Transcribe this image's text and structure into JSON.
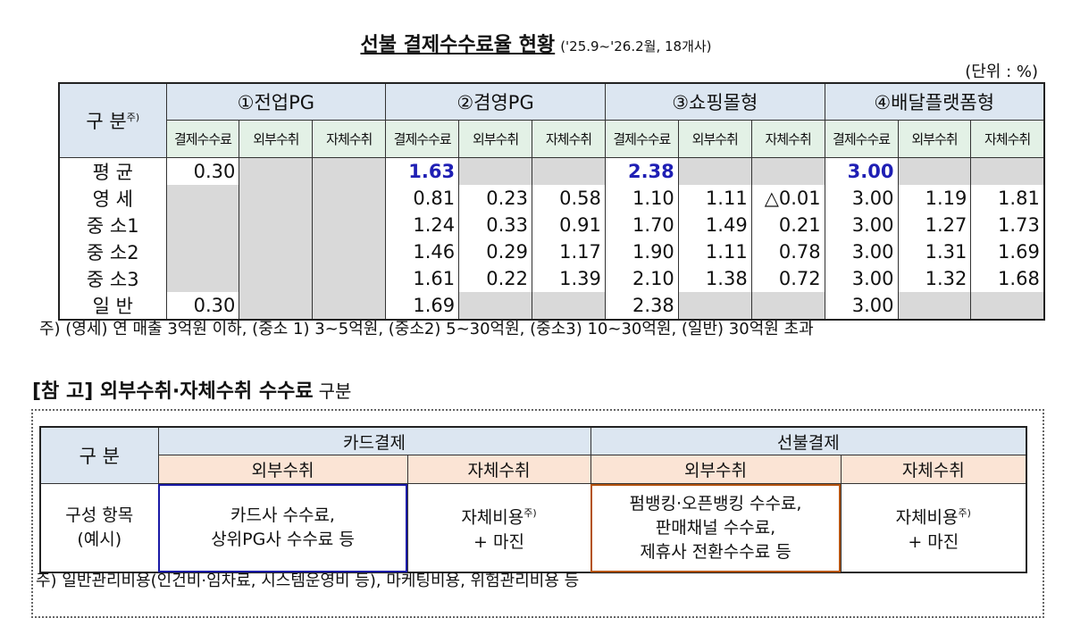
{
  "title": "선불 결제수수료율 현황",
  "title_note": "('25.9~'26.2월, 18개사)",
  "unit": "(단위 : %)",
  "table1": {
    "corner": "구 분",
    "corner_sup": "주)",
    "groups": [
      "①전업PG",
      "②겸영PG",
      "③쇼핑몰형",
      "④배달플랫폼형"
    ],
    "subheaders": [
      "결제수수료",
      "외부수취",
      "자체수취"
    ],
    "rows": [
      {
        "label": "평 균",
        "cells": [
          "0.30",
          null,
          null,
          "1.63",
          null,
          null,
          "2.38",
          null,
          null,
          "3.00",
          null,
          null
        ]
      },
      {
        "label": "영 세",
        "cells": [
          null,
          null,
          null,
          "0.81",
          "0.23",
          "0.58",
          "1.10",
          "1.11",
          "△0.01",
          "3.00",
          "1.19",
          "1.81"
        ]
      },
      {
        "label": "중 소1",
        "cells": [
          null,
          null,
          null,
          "1.24",
          "0.33",
          "0.91",
          "1.70",
          "1.49",
          "0.21",
          "3.00",
          "1.27",
          "1.73"
        ]
      },
      {
        "label": "중 소2",
        "cells": [
          null,
          null,
          null,
          "1.46",
          "0.29",
          "1.17",
          "1.90",
          "1.11",
          "0.78",
          "3.00",
          "1.31",
          "1.69"
        ]
      },
      {
        "label": "중 소3",
        "cells": [
          null,
          null,
          null,
          "1.61",
          "0.22",
          "1.39",
          "2.10",
          "1.38",
          "0.72",
          "3.00",
          "1.32",
          "1.68"
        ]
      },
      {
        "label": "일 반",
        "cells": [
          "0.30",
          null,
          null,
          "1.69",
          null,
          null,
          "2.38",
          null,
          null,
          "3.00",
          null,
          null
        ]
      }
    ],
    "footnote": "주) (영세) 연 매출 3억원 이하, (중소 1) 3~5억원, (중소2) 5~30억원, (중소3) 10~30억원, (일반) 30억원 초과"
  },
  "section2": {
    "heading": "[참 고] 외부수취·자체수취 수수료",
    "heading_suffix": "구분",
    "table": {
      "corner": "구 분",
      "groups": [
        "카드결제",
        "선불결제"
      ],
      "subheaders": [
        "외부수취",
        "자체수취",
        "외부수취",
        "자체수취"
      ],
      "row_label": [
        "구성 항목",
        "(예시)"
      ],
      "cells": [
        {
          "lines": [
            "카드사 수수료,",
            "상위PG사 수수료 등"
          ]
        },
        {
          "lines": [
            "자체비용",
            "+ 마진"
          ],
          "sup": "주)"
        },
        {
          "lines": [
            "펌뱅킹·오픈뱅킹 수수료,",
            "판매채널 수수료,",
            "제휴사 전환수수료 등"
          ]
        },
        {
          "lines": [
            "자체비용",
            "+ 마진"
          ],
          "sup": "주)"
        }
      ]
    },
    "footnote": "주) 일반관리비용(인건비·임차료, 시스템운영비 등), 마케팅비용, 위험관리비용 등"
  }
}
